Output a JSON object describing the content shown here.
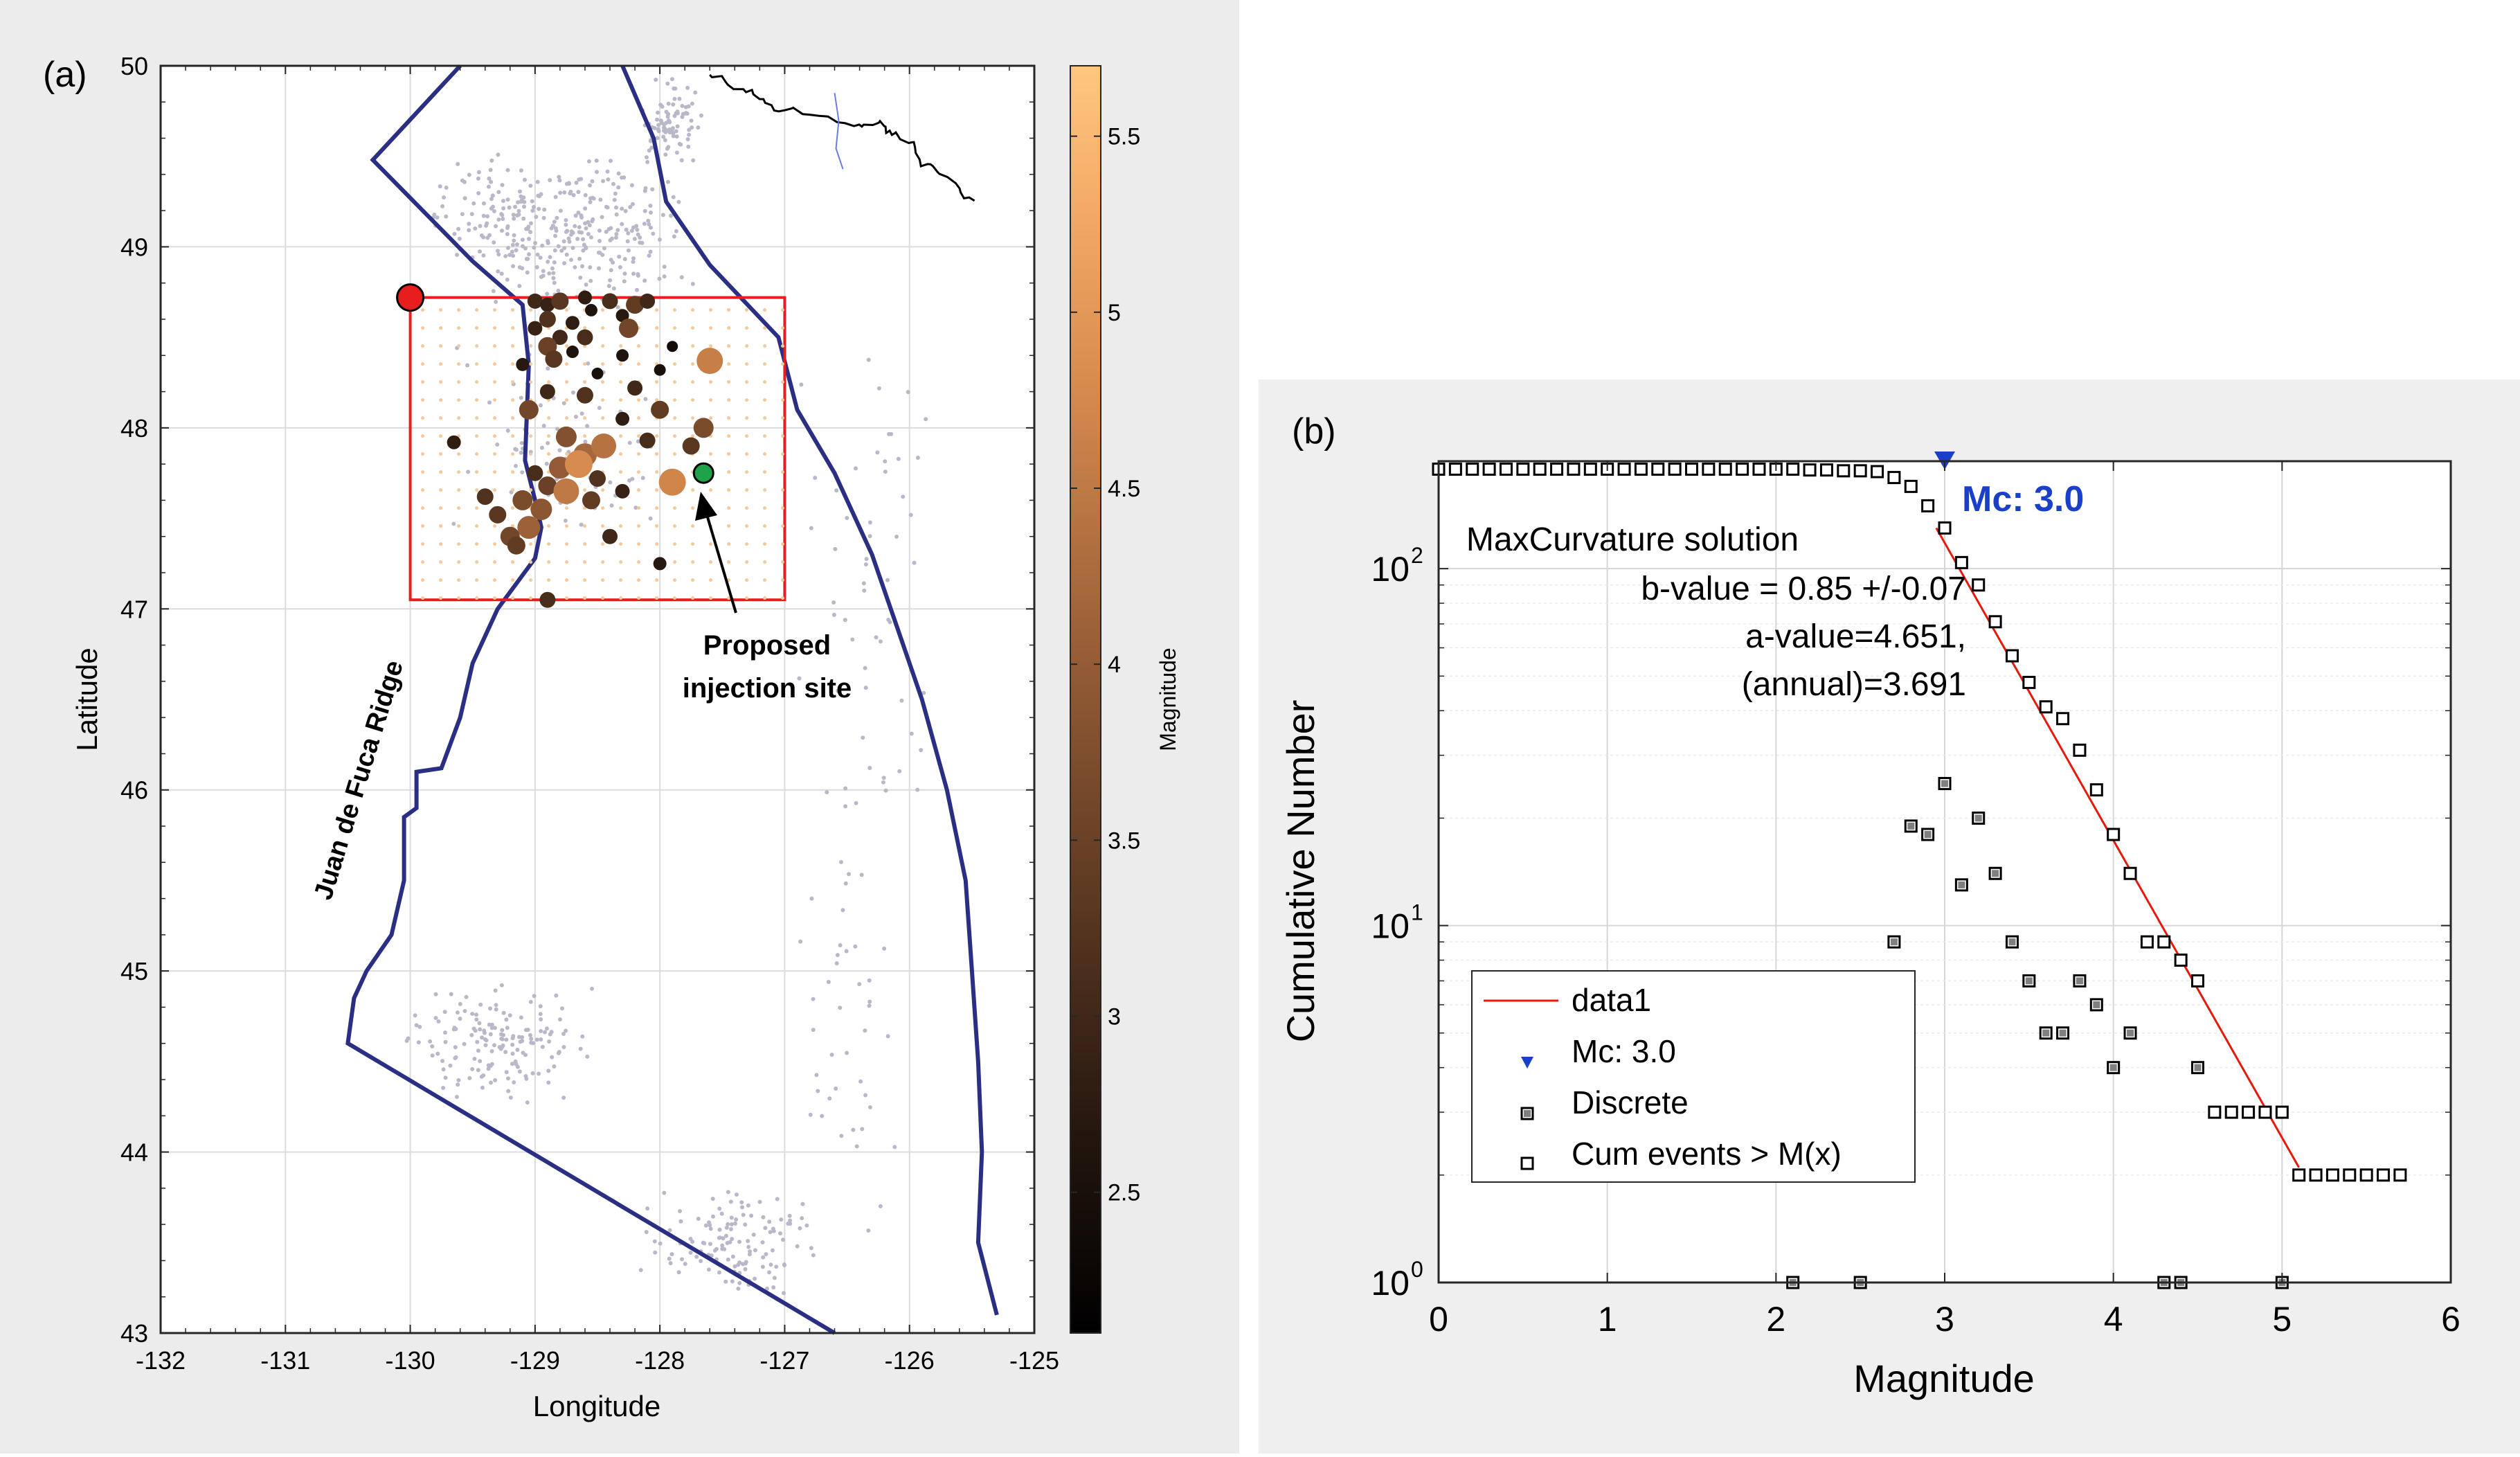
{
  "chart_data": [
    {
      "type": "scatter",
      "panel_label": "(a)",
      "xlabel": "Longitude",
      "ylabel": "Latitude",
      "xlim": [
        -132,
        -125
      ],
      "ylim": [
        43,
        50
      ],
      "xticks": [
        "-132",
        "-131",
        "-130",
        "-129",
        "-128",
        "-127",
        "-126",
        "-125"
      ],
      "yticks": [
        "43",
        "44",
        "45",
        "46",
        "47",
        "48",
        "49",
        "50"
      ],
      "grid": true,
      "colorbar": {
        "label": "Magnitude",
        "range": [
          2.1,
          5.7
        ],
        "ticks": [
          "2.5",
          "3",
          "3.5",
          "4",
          "4.5",
          "5",
          "5.5"
        ]
      },
      "annotations": {
        "ridge_label": "Juan de Fuca Ridge",
        "injection_site_line1": "Proposed",
        "injection_site_line2": "injection site"
      },
      "study_box": {
        "lon": [
          -130,
          -127
        ],
        "lat": [
          47.05,
          48.72
        ]
      },
      "red_marker": {
        "lon": -130.0,
        "lat": 48.72
      },
      "injection_site": {
        "lon": -127.65,
        "lat": 47.75
      },
      "plate_boundary": [
        [
          -129.6,
          50.0
        ],
        [
          -130.3,
          49.48
        ],
        [
          -129.5,
          48.92
        ],
        [
          -129.1,
          48.68
        ],
        [
          -129.05,
          48.35
        ],
        [
          -129.08,
          47.82
        ],
        [
          -129.0,
          47.6
        ],
        [
          -128.95,
          47.45
        ],
        [
          -129.0,
          47.28
        ],
        [
          -129.3,
          47.0
        ],
        [
          -129.5,
          46.7
        ],
        [
          -129.6,
          46.4
        ],
        [
          -129.75,
          46.12
        ],
        [
          -129.95,
          46.1
        ],
        [
          -129.95,
          45.9
        ],
        [
          -130.05,
          45.85
        ],
        [
          -130.05,
          45.5
        ],
        [
          -130.15,
          45.2
        ],
        [
          -130.35,
          45.0
        ],
        [
          -130.45,
          44.85
        ],
        [
          -130.5,
          44.6
        ],
        [
          -126.6,
          43.0
        ]
      ],
      "margin_line": [
        [
          -128.3,
          50.0
        ],
        [
          -128.05,
          49.6
        ],
        [
          -127.95,
          49.25
        ],
        [
          -127.6,
          48.9
        ],
        [
          -127.05,
          48.5
        ],
        [
          -126.9,
          48.1
        ],
        [
          -126.6,
          47.75
        ],
        [
          -126.3,
          47.3
        ],
        [
          -126.1,
          46.9
        ],
        [
          -125.9,
          46.5
        ],
        [
          -125.7,
          46.0
        ],
        [
          -125.55,
          45.5
        ],
        [
          -125.5,
          45.0
        ],
        [
          -125.45,
          44.5
        ],
        [
          -125.42,
          44.0
        ],
        [
          -125.45,
          43.5
        ],
        [
          -125.3,
          43.1
        ]
      ],
      "events": [
        {
          "lon": -129.0,
          "lat": 48.7,
          "mag": 3.0
        },
        {
          "lon": -128.9,
          "lat": 48.68,
          "mag": 2.9
        },
        {
          "lon": -128.8,
          "lat": 48.7,
          "mag": 3.3
        },
        {
          "lon": -128.6,
          "lat": 48.72,
          "mag": 2.8
        },
        {
          "lon": -128.4,
          "lat": 48.7,
          "mag": 3.1
        },
        {
          "lon": -128.2,
          "lat": 48.68,
          "mag": 3.4
        },
        {
          "lon": -128.1,
          "lat": 48.7,
          "mag": 3.0
        },
        {
          "lon": -128.3,
          "lat": 48.62,
          "mag": 2.7
        },
        {
          "lon": -128.9,
          "lat": 48.6,
          "mag": 3.2
        },
        {
          "lon": -128.7,
          "lat": 48.58,
          "mag": 2.8
        },
        {
          "lon": -128.8,
          "lat": 48.5,
          "mag": 3.0
        },
        {
          "lon": -128.9,
          "lat": 48.45,
          "mag": 3.5
        },
        {
          "lon": -129.0,
          "lat": 48.55,
          "mag": 2.9
        },
        {
          "lon": -128.7,
          "lat": 48.42,
          "mag": 2.6
        },
        {
          "lon": -128.6,
          "lat": 48.5,
          "mag": 3.1
        },
        {
          "lon": -129.1,
          "lat": 48.35,
          "mag": 2.7
        },
        {
          "lon": -128.85,
          "lat": 48.38,
          "mag": 3.3
        },
        {
          "lon": -128.5,
          "lat": 48.3,
          "mag": 2.5
        },
        {
          "lon": -128.3,
          "lat": 48.4,
          "mag": 2.6
        },
        {
          "lon": -127.9,
          "lat": 48.45,
          "mag": 2.4
        },
        {
          "lon": -127.6,
          "lat": 48.37,
          "mag": 4.6
        },
        {
          "lon": -128.2,
          "lat": 48.22,
          "mag": 3.0
        },
        {
          "lon": -128.0,
          "lat": 48.1,
          "mag": 3.4
        },
        {
          "lon": -128.3,
          "lat": 48.05,
          "mag": 2.8
        },
        {
          "lon": -128.6,
          "lat": 48.18,
          "mag": 3.2
        },
        {
          "lon": -128.9,
          "lat": 48.2,
          "mag": 3.0
        },
        {
          "lon": -129.05,
          "lat": 48.1,
          "mag": 3.6
        },
        {
          "lon": -128.75,
          "lat": 47.95,
          "mag": 3.8
        },
        {
          "lon": -128.6,
          "lat": 47.85,
          "mag": 4.2
        },
        {
          "lon": -128.45,
          "lat": 47.9,
          "mag": 4.4
        },
        {
          "lon": -128.8,
          "lat": 47.78,
          "mag": 4.0
        },
        {
          "lon": -128.9,
          "lat": 47.68,
          "mag": 3.5
        },
        {
          "lon": -129.1,
          "lat": 47.6,
          "mag": 3.7
        },
        {
          "lon": -129.3,
          "lat": 47.52,
          "mag": 3.3
        },
        {
          "lon": -129.2,
          "lat": 47.4,
          "mag": 3.6
        },
        {
          "lon": -129.05,
          "lat": 47.45,
          "mag": 4.1
        },
        {
          "lon": -128.95,
          "lat": 47.55,
          "mag": 3.9
        },
        {
          "lon": -129.15,
          "lat": 47.35,
          "mag": 3.4
        },
        {
          "lon": -128.75,
          "lat": 47.65,
          "mag": 4.5
        },
        {
          "lon": -128.5,
          "lat": 47.72,
          "mag": 3.2
        },
        {
          "lon": -128.3,
          "lat": 47.65,
          "mag": 2.9
        },
        {
          "lon": -127.9,
          "lat": 47.7,
          "mag": 4.7
        },
        {
          "lon": -127.75,
          "lat": 47.9,
          "mag": 3.3
        },
        {
          "lon": -127.65,
          "lat": 48.0,
          "mag": 3.7
        },
        {
          "lon": -128.1,
          "lat": 47.93,
          "mag": 3.1
        },
        {
          "lon": -129.65,
          "lat": 47.92,
          "mag": 2.8
        },
        {
          "lon": -129.4,
          "lat": 47.62,
          "mag": 3.2
        },
        {
          "lon": -128.4,
          "lat": 47.4,
          "mag": 3.0
        },
        {
          "lon": -128.0,
          "lat": 47.25,
          "mag": 2.7
        },
        {
          "lon": -128.9,
          "lat": 47.05,
          "mag": 3.1
        },
        {
          "lon": -128.65,
          "lat": 47.8,
          "mag": 4.8
        },
        {
          "lon": -128.55,
          "lat": 47.6,
          "mag": 3.4
        },
        {
          "lon": -128.25,
          "lat": 48.55,
          "mag": 3.6
        },
        {
          "lon": -128.55,
          "lat": 48.65,
          "mag": 2.6
        },
        {
          "lon": -129.0,
          "lat": 47.75,
          "mag": 3.1
        },
        {
          "lon": -128.0,
          "lat": 48.32,
          "mag": 2.5
        }
      ]
    },
    {
      "type": "scatter",
      "panel_label": "(b)",
      "xlabel": "Magnitude",
      "ylabel": "Cumulative Number",
      "yscale": "log",
      "xlim": [
        0,
        6
      ],
      "ylim": [
        1,
        200
      ],
      "xticks": [
        "0",
        "1",
        "2",
        "3",
        "4",
        "5",
        "6"
      ],
      "yticks": [
        {
          "value": 1,
          "base": "10",
          "exp": "0"
        },
        {
          "value": 10,
          "base": "10",
          "exp": "1"
        },
        {
          "value": 100,
          "base": "10",
          "exp": "2"
        }
      ],
      "mc_label": "Mc: 3.0",
      "mc": 3.0,
      "solution_text": [
        "MaxCurvature solution",
        "b-value = 0.85 +/-0.07",
        "a-value=4.651,",
        "(annual)=3.691"
      ],
      "legend": {
        "placement": "bottom-left",
        "entries": [
          "data1",
          "Mc: 3.0",
          "Discrete",
          "Cum events > M(x)"
        ]
      },
      "fit_line": {
        "name": "data1",
        "x": [
          2.95,
          5.1
        ],
        "y": [
          130,
          2.1
        ]
      },
      "series": [
        {
          "name": "Cum events > M(x)",
          "x": [
            0.0,
            0.1,
            0.2,
            0.3,
            0.4,
            0.5,
            0.6,
            0.7,
            0.8,
            0.9,
            1.0,
            1.1,
            1.2,
            1.3,
            1.4,
            1.5,
            1.6,
            1.7,
            1.8,
            1.9,
            2.0,
            2.1,
            2.2,
            2.3,
            2.4,
            2.5,
            2.6,
            2.7,
            2.8,
            2.9,
            3.0,
            3.1,
            3.2,
            3.3,
            3.4,
            3.5,
            3.6,
            3.7,
            3.8,
            3.9,
            4.0,
            4.1,
            4.2,
            4.3,
            4.4,
            4.5,
            4.6,
            4.7,
            4.8,
            4.9,
            5.0,
            5.1,
            5.2,
            5.3,
            5.4,
            5.5,
            5.6,
            5.7
          ],
          "y": [
            190,
            190,
            190,
            190,
            190,
            190,
            190,
            190,
            190,
            190,
            190,
            190,
            190,
            190,
            190,
            190,
            190,
            190,
            190,
            190,
            190,
            190,
            189,
            189,
            188,
            188,
            187,
            180,
            170,
            150,
            130,
            104,
            90,
            71,
            57,
            48,
            41,
            38,
            31,
            24,
            18,
            14,
            9,
            9,
            8,
            7,
            3,
            3,
            3,
            3,
            3,
            2,
            2,
            2,
            2,
            2,
            2,
            2
          ]
        },
        {
          "name": "Discrete",
          "x": [
            2.1,
            2.5,
            2.7,
            2.8,
            2.9,
            3.0,
            3.1,
            3.2,
            3.3,
            3.4,
            3.5,
            3.6,
            3.7,
            3.8,
            3.9,
            4.0,
            4.1,
            4.3,
            4.4,
            4.5,
            5.0
          ],
          "y": [
            1,
            1,
            9,
            19,
            18,
            25,
            13,
            20,
            14,
            9,
            7,
            5,
            5,
            7,
            6,
            4,
            5,
            1,
            1,
            4,
            1
          ]
        }
      ]
    }
  ]
}
